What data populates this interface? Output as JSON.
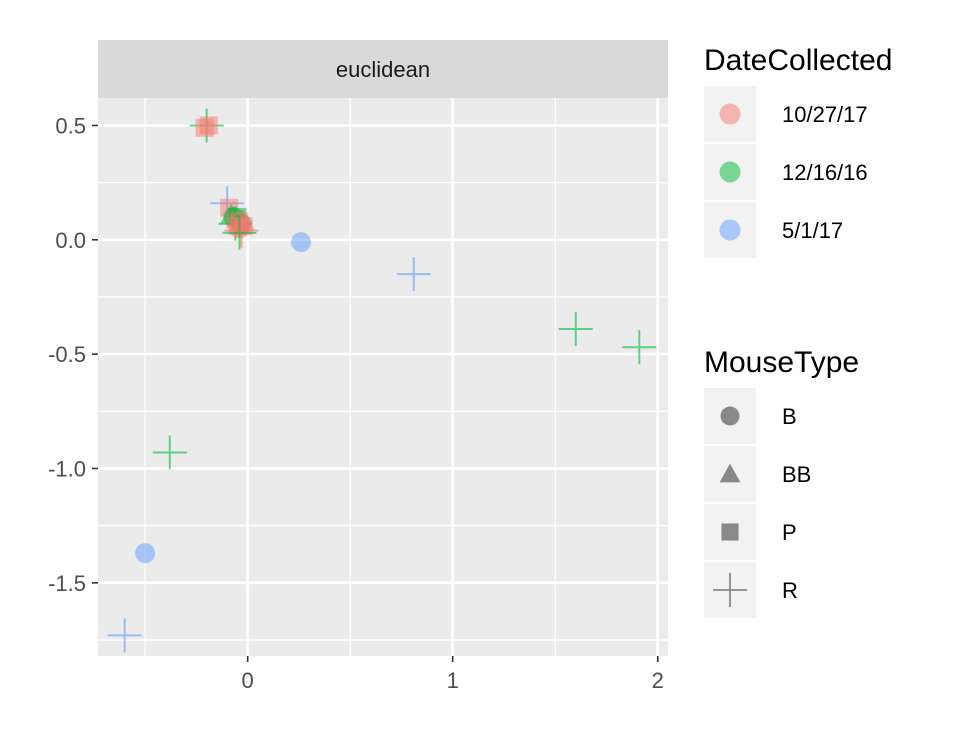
{
  "chart_data": {
    "type": "scatter",
    "facet": "euclidean",
    "xlabel": "",
    "ylabel": "",
    "xlim": [
      -0.73,
      2.05
    ],
    "ylim": [
      -1.82,
      0.62
    ],
    "x_ticks": [
      0,
      1,
      2
    ],
    "x_tick_labels": [
      "0",
      "1",
      "2"
    ],
    "y_ticks": [
      0.5,
      0.0,
      -0.5,
      -1.0,
      -1.5
    ],
    "y_tick_labels": [
      "0.5",
      "0.0",
      "-0.5",
      "-1.0",
      "-1.5"
    ],
    "grid": true,
    "color_legend": {
      "title": "DateCollected",
      "entries": [
        {
          "label": "10/27/17",
          "color": "#F8766D"
        },
        {
          "label": "12/16/16",
          "color": "#00BA38"
        },
        {
          "label": "5/1/17",
          "color": "#619CFF"
        }
      ]
    },
    "shape_legend": {
      "title": "MouseType",
      "entries": [
        {
          "label": "B",
          "shape": "circle"
        },
        {
          "label": "BB",
          "shape": "triangle"
        },
        {
          "label": "P",
          "shape": "square"
        },
        {
          "label": "R",
          "shape": "plus"
        }
      ]
    },
    "points": [
      {
        "x": -0.2,
        "y": 0.5,
        "date": "12/16/16",
        "shape": "plus"
      },
      {
        "x": -0.19,
        "y": 0.5,
        "date": "10/27/17",
        "shape": "square"
      },
      {
        "x": -0.21,
        "y": 0.49,
        "date": "10/27/17",
        "shape": "square"
      },
      {
        "x": -0.1,
        "y": 0.16,
        "date": "5/1/17",
        "shape": "plus"
      },
      {
        "x": -0.09,
        "y": 0.14,
        "date": "10/27/17",
        "shape": "square"
      },
      {
        "x": -0.08,
        "y": 0.11,
        "date": "12/16/16",
        "shape": "triangle"
      },
      {
        "x": -0.07,
        "y": 0.1,
        "date": "12/16/16",
        "shape": "circle"
      },
      {
        "x": -0.06,
        "y": 0.09,
        "date": "10/27/17",
        "shape": "square"
      },
      {
        "x": -0.05,
        "y": 0.1,
        "date": "12/16/16",
        "shape": "square"
      },
      {
        "x": -0.06,
        "y": 0.07,
        "date": "12/16/16",
        "shape": "plus"
      },
      {
        "x": -0.04,
        "y": 0.08,
        "date": "10/27/17",
        "shape": "square"
      },
      {
        "x": -0.03,
        "y": 0.07,
        "date": "12/16/16",
        "shape": "circle"
      },
      {
        "x": -0.05,
        "y": 0.06,
        "date": "10/27/17",
        "shape": "square"
      },
      {
        "x": -0.04,
        "y": 0.05,
        "date": "10/27/17",
        "shape": "circle"
      },
      {
        "x": -0.02,
        "y": 0.06,
        "date": "10/27/17",
        "shape": "square"
      },
      {
        "x": -0.03,
        "y": 0.04,
        "date": "10/27/17",
        "shape": "plus"
      },
      {
        "x": -0.02,
        "y": 0.08,
        "date": "10/27/17",
        "shape": "triangle"
      },
      {
        "x": -0.04,
        "y": 0.03,
        "date": "12/16/16",
        "shape": "plus"
      },
      {
        "x": 0.26,
        "y": -0.01,
        "date": "5/1/17",
        "shape": "circle"
      },
      {
        "x": 0.81,
        "y": -0.15,
        "date": "5/1/17",
        "shape": "plus"
      },
      {
        "x": 1.6,
        "y": -0.39,
        "date": "12/16/16",
        "shape": "plus"
      },
      {
        "x": 1.91,
        "y": -0.47,
        "date": "12/16/16",
        "shape": "plus"
      },
      {
        "x": -0.38,
        "y": -0.93,
        "date": "12/16/16",
        "shape": "plus"
      },
      {
        "x": -0.5,
        "y": -1.37,
        "date": "5/1/17",
        "shape": "circle"
      },
      {
        "x": -0.6,
        "y": -1.73,
        "date": "5/1/17",
        "shape": "plus"
      }
    ]
  }
}
